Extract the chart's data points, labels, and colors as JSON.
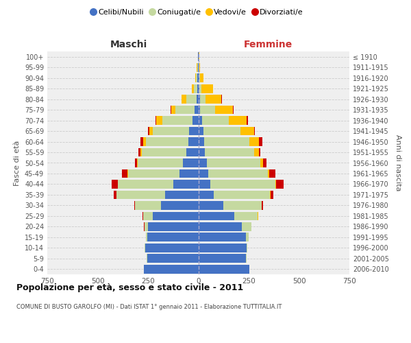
{
  "age_groups": [
    "0-4",
    "5-9",
    "10-14",
    "15-19",
    "20-24",
    "25-29",
    "30-34",
    "35-39",
    "40-44",
    "45-49",
    "50-54",
    "55-59",
    "60-64",
    "65-69",
    "70-74",
    "75-79",
    "80-84",
    "85-89",
    "90-94",
    "95-99",
    "100+"
  ],
  "birth_years": [
    "2006-2010",
    "2001-2005",
    "1996-2000",
    "1991-1995",
    "1986-1990",
    "1981-1985",
    "1976-1980",
    "1971-1975",
    "1966-1970",
    "1961-1965",
    "1956-1960",
    "1951-1955",
    "1946-1950",
    "1941-1945",
    "1936-1940",
    "1931-1935",
    "1926-1930",
    "1921-1925",
    "1916-1920",
    "1911-1915",
    "≤ 1910"
  ],
  "male_celibi": [
    270,
    255,
    265,
    255,
    250,
    225,
    185,
    165,
    125,
    95,
    75,
    60,
    50,
    45,
    30,
    18,
    8,
    5,
    5,
    3,
    2
  ],
  "male_coniugati": [
    0,
    1,
    2,
    5,
    18,
    48,
    128,
    240,
    275,
    255,
    225,
    220,
    210,
    180,
    150,
    95,
    52,
    18,
    8,
    3,
    1
  ],
  "male_vedovi": [
    0,
    0,
    0,
    0,
    0,
    1,
    1,
    1,
    1,
    2,
    4,
    7,
    13,
    18,
    28,
    22,
    22,
    10,
    3,
    1,
    0
  ],
  "male_divorziati": [
    0,
    0,
    0,
    0,
    1,
    2,
    5,
    14,
    28,
    28,
    9,
    11,
    14,
    7,
    5,
    3,
    2,
    0,
    0,
    0,
    0
  ],
  "female_nubili": [
    252,
    238,
    240,
    235,
    215,
    180,
    125,
    75,
    58,
    50,
    42,
    32,
    28,
    25,
    18,
    10,
    7,
    4,
    4,
    3,
    2
  ],
  "female_coniugate": [
    0,
    1,
    3,
    14,
    48,
    115,
    190,
    282,
    325,
    295,
    265,
    245,
    225,
    185,
    135,
    75,
    30,
    12,
    4,
    2,
    1
  ],
  "female_vedove": [
    0,
    0,
    0,
    0,
    0,
    1,
    1,
    1,
    2,
    7,
    13,
    23,
    48,
    68,
    88,
    88,
    78,
    58,
    18,
    3,
    1
  ],
  "female_divorziate": [
    0,
    0,
    0,
    0,
    1,
    2,
    4,
    14,
    38,
    32,
    18,
    9,
    18,
    4,
    4,
    2,
    2,
    0,
    0,
    0,
    0
  ],
  "colors_celibi": "#4472c4",
  "colors_coniugati": "#c5d9a0",
  "colors_vedovi": "#ffc000",
  "colors_divorziati": "#cc0000",
  "xlim": 750,
  "title": "Popolazione per età, sesso e stato civile - 2011",
  "subtitle": "COMUNE DI BUSTO GAROLFO (MI) - Dati ISTAT 1° gennaio 2011 - Elaborazione TUTTITALIA.IT",
  "ylabel_left": "Fasce di età",
  "ylabel_right": "Anni di nascita",
  "label_maschi": "Maschi",
  "label_femmine": "Femmine",
  "legend_labels": [
    "Celibi/Nubili",
    "Coniugati/e",
    "Vedovi/e",
    "Divorziati/e"
  ],
  "bg_color": "#ffffff",
  "plot_bg": "#efefef",
  "grid_color": "#cccccc"
}
